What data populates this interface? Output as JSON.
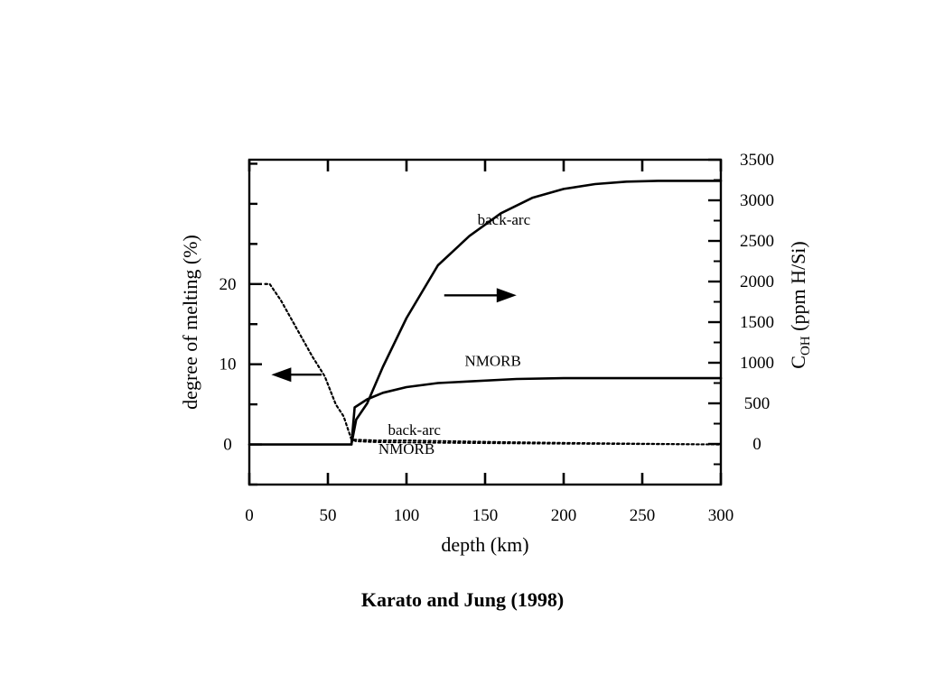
{
  "caption": "Karato and Jung (1998)",
  "chart_data": {
    "type": "line",
    "xlabel": "depth (km)",
    "ylabel_left": "degree of melting (%)",
    "ylabel_right": "C_OH (ppm H/Si)",
    "ylabel_right_parts": {
      "base": "C",
      "sub": "OH",
      "rest": " (ppm H/Si)"
    },
    "xlim": [
      0,
      300
    ],
    "ylim_left": [
      -5,
      35.5
    ],
    "ylim_right": [
      -500,
      3500
    ],
    "x_ticks": [
      0,
      50,
      100,
      150,
      200,
      250,
      300
    ],
    "y_left_ticks": [
      0,
      10,
      20
    ],
    "y_right_ticks": [
      0,
      500,
      1000,
      1500,
      2000,
      2500,
      3000,
      3500
    ],
    "grid": false,
    "series": [
      {
        "name": "back-arc",
        "axis": "right",
        "style": "solid",
        "x": [
          65,
          68,
          75,
          85,
          100,
          120,
          140,
          160,
          180,
          200,
          220,
          240,
          260,
          280,
          300
        ],
        "y": [
          0,
          300,
          500,
          950,
          1550,
          2200,
          2560,
          2840,
          3030,
          3140,
          3200,
          3230,
          3240,
          3240,
          3240
        ]
      },
      {
        "name": "NMORB",
        "axis": "right",
        "style": "solid",
        "x": [
          65,
          67,
          75,
          85,
          100,
          120,
          140,
          170,
          200,
          230,
          260,
          300
        ],
        "y": [
          0,
          450,
          550,
          630,
          700,
          750,
          770,
          800,
          810,
          810,
          810,
          810
        ]
      },
      {
        "name": "back-arc",
        "axis": "left",
        "style": "dotted",
        "x": [
          10,
          13,
          20,
          30,
          40,
          48,
          55,
          60,
          65,
          68,
          80,
          100,
          130,
          160,
          200,
          250,
          300
        ],
        "y": [
          20,
          20,
          18,
          14.5,
          11,
          8.5,
          5,
          3.5,
          0.6,
          0.6,
          0.5,
          0.5,
          0.4,
          0.3,
          0.2,
          0.1,
          0
        ]
      },
      {
        "name": "NMORB",
        "axis": "left",
        "style": "dotted",
        "x": [
          10,
          13,
          20,
          30,
          40,
          48,
          55,
          60,
          65,
          68,
          80,
          100,
          130,
          160,
          200,
          250,
          300
        ],
        "y": [
          20,
          20,
          18,
          14.5,
          11,
          8.5,
          5,
          3.5,
          0.6,
          0.4,
          0.3,
          0.25,
          0.2,
          0.15,
          0.1,
          0.05,
          0
        ]
      },
      {
        "name": "baseline",
        "axis": "left",
        "style": "solid",
        "x": [
          0,
          65
        ],
        "y": [
          0,
          0
        ]
      }
    ],
    "annotations": [
      {
        "text": "back-arc",
        "x": 162,
        "y_right": 2700
      },
      {
        "text": "NMORB",
        "x": 155,
        "y_right": 960
      },
      {
        "text": "back-arc",
        "x": 105,
        "y_left": 1.2
      },
      {
        "text": "NMORB",
        "x": 100,
        "y_left": -1.2
      }
    ],
    "arrows": [
      {
        "direction": "right",
        "axis": "right",
        "x_from": 124,
        "x_to": 170,
        "y_right": 1830
      },
      {
        "direction": "left",
        "axis": "left",
        "x_from": 46,
        "x_to": 14,
        "y_left": 8.7
      }
    ]
  }
}
